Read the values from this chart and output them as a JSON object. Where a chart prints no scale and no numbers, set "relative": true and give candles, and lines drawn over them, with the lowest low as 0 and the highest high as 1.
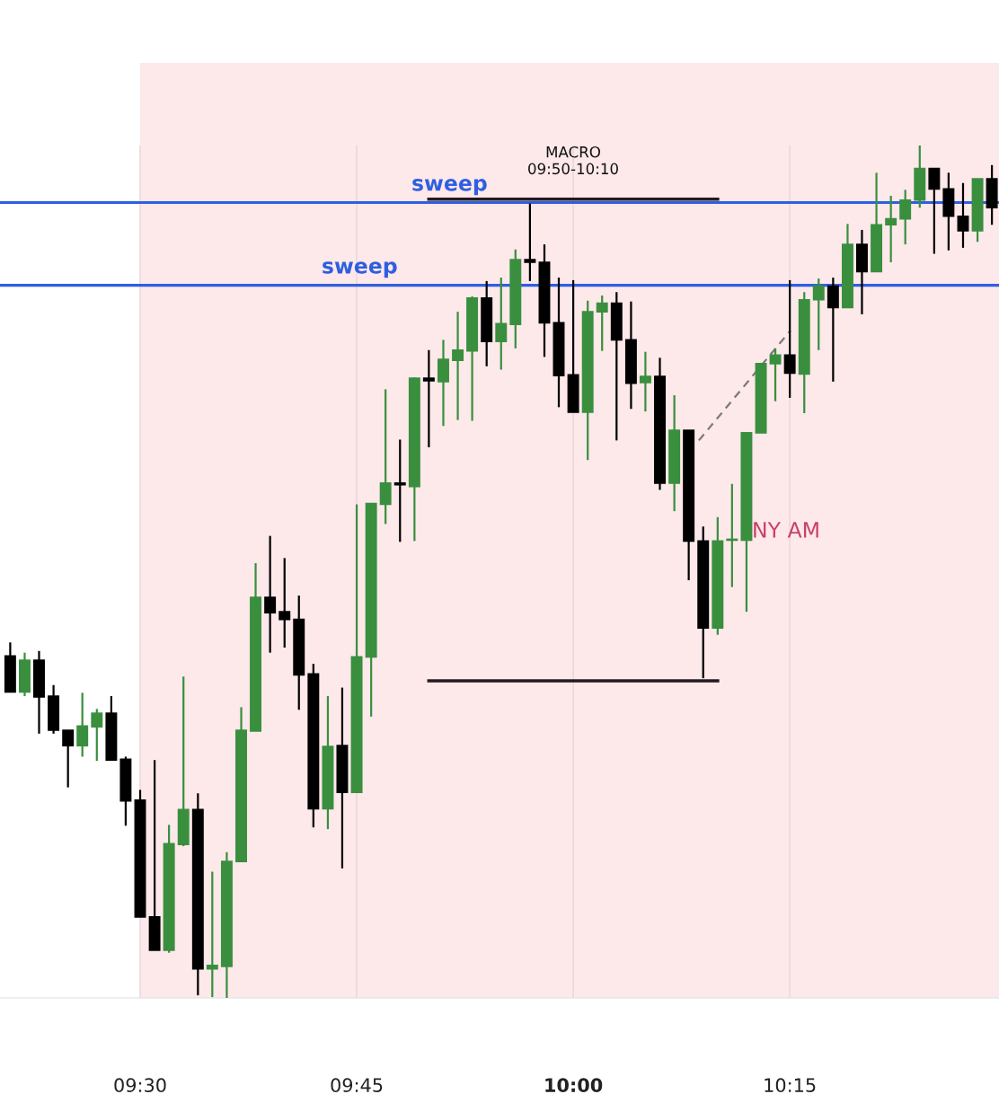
{
  "chart_data": {
    "type": "candlestick",
    "relative": true,
    "x": [
      9.35,
      9.3667,
      9.3833,
      9.4,
      9.4167,
      9.4333,
      9.45,
      9.4667,
      9.4833,
      9.5,
      9.5167,
      9.5333,
      9.55,
      9.5667,
      9.5833,
      9.6,
      9.6167,
      9.6333,
      9.65,
      9.6667,
      9.6833,
      9.7,
      9.7167,
      9.7333,
      9.75,
      9.7667,
      9.7833,
      9.8,
      9.8167,
      9.8333,
      9.85,
      9.8667,
      9.8833,
      9.9,
      9.9167,
      9.9333,
      9.95,
      9.9667,
      9.9833,
      10.0,
      10.0167,
      10.0333,
      10.05,
      10.0667,
      10.0833,
      10.1,
      10.1167,
      10.1333,
      10.15,
      10.1667,
      10.1833,
      10.2,
      10.2167,
      10.2333,
      10.25,
      10.2667,
      10.2833,
      10.3,
      10.3167,
      10.3333,
      10.35,
      10.3667,
      10.3833,
      10.4,
      10.4167,
      10.4333,
      10.45,
      10.4667,
      10.4833
    ],
    "ohlc": [
      [
        0.401,
        0.417,
        0.359,
        0.359
      ],
      [
        0.359,
        0.405,
        0.354,
        0.396
      ],
      [
        0.396,
        0.407,
        0.31,
        0.353
      ],
      [
        0.354,
        0.367,
        0.31,
        0.314
      ],
      [
        0.314,
        0.314,
        0.247,
        0.296
      ],
      [
        0.296,
        0.358,
        0.283,
        0.319
      ],
      [
        0.318,
        0.339,
        0.278,
        0.334
      ],
      [
        0.334,
        0.354,
        0.279,
        0.279
      ],
      [
        0.28,
        0.283,
        0.202,
        0.231
      ],
      [
        0.232,
        0.244,
        0.095,
        0.095
      ],
      [
        0.095,
        0.279,
        0.056,
        0.056
      ],
      [
        0.056,
        0.203,
        0.053,
        0.181
      ],
      [
        0.18,
        0.377,
        0.178,
        0.221
      ],
      [
        0.221,
        0.24,
        0.003,
        0.034
      ],
      [
        0.034,
        0.148,
        0.001,
        0.038
      ],
      [
        0.037,
        0.171,
        0,
        0.16
      ],
      [
        0.16,
        0.341,
        0.16,
        0.314
      ],
      [
        0.313,
        0.51,
        0.313,
        0.47
      ],
      [
        0.47,
        0.542,
        0.405,
        0.452
      ],
      [
        0.453,
        0.516,
        0.411,
        0.444
      ],
      [
        0.444,
        0.472,
        0.338,
        0.379
      ],
      [
        0.38,
        0.392,
        0.2,
        0.222
      ],
      [
        0.222,
        0.354,
        0.198,
        0.295
      ],
      [
        0.296,
        0.364,
        0.152,
        0.241
      ],
      [
        0.241,
        0.579,
        0.241,
        0.4
      ],
      [
        0.4,
        0.58,
        0.33,
        0.58
      ],
      [
        0.579,
        0.714,
        0.556,
        0.604
      ],
      [
        0.604,
        0.655,
        0.535,
        0.602
      ],
      [
        0.6,
        0.728,
        0.536,
        0.727
      ],
      [
        0.727,
        0.76,
        0.646,
        0.724
      ],
      [
        0.723,
        0.772,
        0.671,
        0.749
      ],
      [
        0.748,
        0.805,
        0.678,
        0.76
      ],
      [
        0.759,
        0.823,
        0.677,
        0.821
      ],
      [
        0.821,
        0.841,
        0.741,
        0.77
      ],
      [
        0.77,
        0.845,
        0.737,
        0.791
      ],
      [
        0.79,
        0.878,
        0.762,
        0.866
      ],
      [
        0.866,
        0.932,
        0.841,
        0.863
      ],
      [
        0.863,
        0.884,
        0.752,
        0.792
      ],
      [
        0.792,
        0.845,
        0.693,
        0.73
      ],
      [
        0.731,
        0.842,
        0.687,
        0.687
      ],
      [
        0.687,
        0.818,
        0.631,
        0.805
      ],
      [
        0.805,
        0.824,
        0.759,
        0.815
      ],
      [
        0.815,
        0.828,
        0.654,
        0.772
      ],
      [
        0.772,
        0.817,
        0.691,
        0.721
      ],
      [
        0.722,
        0.758,
        0.688,
        0.729
      ],
      [
        0.729,
        0.751,
        0.596,
        0.604
      ],
      [
        0.604,
        0.707,
        0.571,
        0.666
      ],
      [
        0.666,
        0.666,
        0.49,
        0.536
      ],
      [
        0.536,
        0.553,
        0.375,
        0.434
      ],
      [
        0.434,
        0.564,
        0.426,
        0.536
      ],
      [
        0.537,
        0.603,
        0.482,
        0.538
      ],
      [
        0.537,
        0.663,
        0.453,
        0.663
      ],
      [
        0.663,
        0.744,
        0.663,
        0.744
      ],
      [
        0.744,
        0.762,
        0.7,
        0.754
      ],
      [
        0.754,
        0.842,
        0.704,
        0.733
      ],
      [
        0.732,
        0.828,
        0.686,
        0.819
      ],
      [
        0.819,
        0.844,
        0.76,
        0.835
      ],
      [
        0.835,
        0.845,
        0.723,
        0.81
      ],
      [
        0.81,
        0.908,
        0.81,
        0.884
      ],
      [
        0.884,
        0.901,
        0.802,
        0.852
      ],
      [
        0.852,
        0.968,
        0.852,
        0.907
      ],
      [
        0.907,
        0.941,
        0.863,
        0.914
      ],
      [
        0.914,
        0.948,
        0.884,
        0.936
      ],
      [
        0.936,
        1,
        0.927,
        0.973
      ],
      [
        0.973,
        0.973,
        0.873,
        0.949
      ],
      [
        0.949,
        0.968,
        0.877,
        0.917
      ],
      [
        0.917,
        0.956,
        0.88,
        0.9
      ],
      [
        0.9,
        0.961,
        0.887,
        0.961
      ],
      [
        0.961,
        0.977,
        0.907,
        0.927
      ]
    ],
    "colors": [
      "#000000",
      "#3a8f3e",
      "#000000",
      "#000000",
      "#000000",
      "#3a8f3e",
      "#3a8f3e",
      "#000000",
      "#000000",
      "#000000",
      "#000000",
      "#3a8f3e",
      "#3a8f3e",
      "#000000",
      "#3a8f3e",
      "#3a8f3e",
      "#3a8f3e",
      "#3a8f3e",
      "#000000",
      "#000000",
      "#000000",
      "#000000",
      "#3a8f3e",
      "#000000",
      "#3a8f3e",
      "#3a8f3e",
      "#3a8f3e",
      "#000000",
      "#3a8f3e",
      "#000000",
      "#3a8f3e",
      "#3a8f3e",
      "#3a8f3e",
      "#000000",
      "#3a8f3e",
      "#3a8f3e",
      "#000000",
      "#000000",
      "#000000",
      "#000000",
      "#3a8f3e",
      "#3a8f3e",
      "#000000",
      "#000000",
      "#3a8f3e",
      "#000000",
      "#3a8f3e",
      "#000000",
      "#000000",
      "#3a8f3e",
      "#3a8f3e",
      "#3a8f3e",
      "#3a8f3e",
      "#3a8f3e",
      "#000000",
      "#3a8f3e",
      "#3a8f3e",
      "#000000",
      "#3a8f3e",
      "#000000",
      "#3a8f3e",
      "#3a8f3e",
      "#3a8f3e",
      "#3a8f3e",
      "#000000",
      "#000000",
      "#000000",
      "#3a8f3e",
      "#000000"
    ],
    "series": [
      {
        "type": "line",
        "color": "#231a1e",
        "x": [
          9.8333,
          10.1667
        ],
        "values": [
          0.937,
          0.937
        ]
      },
      {
        "type": "line",
        "color": "#231a1e",
        "x": [
          9.8333,
          10.1667
        ],
        "values": [
          0.372,
          0.372
        ]
      },
      {
        "type": "line",
        "color": "#7a7a7a",
        "line_style": "dashed",
        "x": [
          10.145,
          10.2508
        ],
        "values": [
          0.654,
          0.783
        ]
      }
    ],
    "ref_lines": [
      {
        "axis": "y",
        "value": 0.933,
        "label": "sweep",
        "color": "#2f5fe0"
      },
      {
        "axis": "y",
        "value": 0.836,
        "label": "sweep",
        "color": "#2f5fe0"
      }
    ],
    "bands": [
      {
        "axis": "x",
        "from": 9.5,
        "to": 10.4915,
        "color": "#fde8ea"
      }
    ],
    "annotations": [
      "MACRO\n09:50-10:10",
      "NY AM"
    ],
    "xlim": [
      9.3382,
      10.4915
    ],
    "xticks": [
      {
        "value": 9.5,
        "label": "09:30"
      },
      {
        "value": 9.75,
        "label": "09:45"
      },
      {
        "value": 10.0,
        "label": "10:00"
      },
      {
        "value": 10.25,
        "label": "10:15"
      }
    ],
    "grid": "x"
  }
}
